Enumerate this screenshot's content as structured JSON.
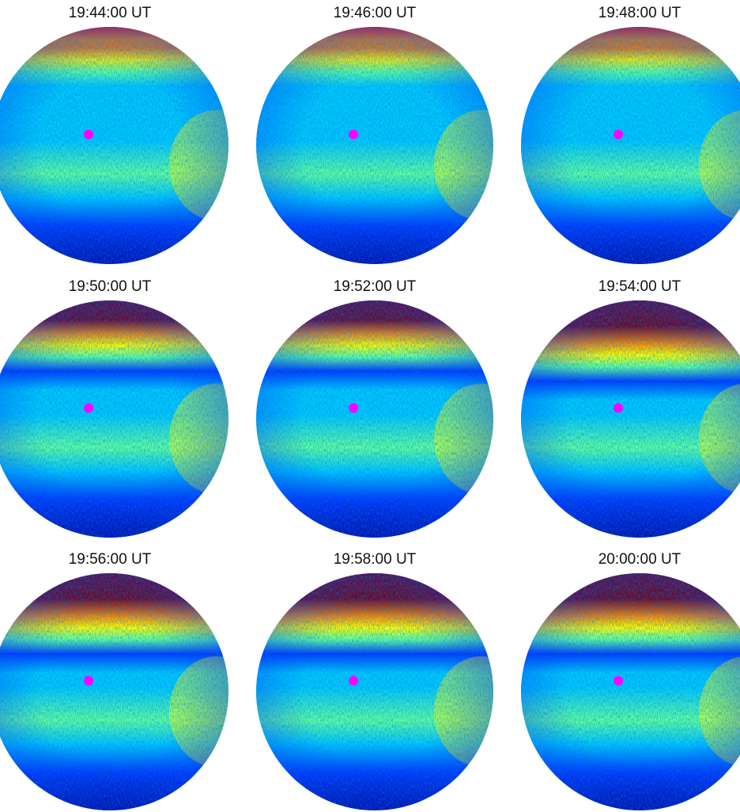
{
  "panels": [
    {
      "label": "19:44:00 UT",
      "aurora_top": "weak"
    },
    {
      "label": "19:46:00 UT",
      "aurora_top": "weak"
    },
    {
      "label": "19:48:00 UT",
      "aurora_top": "weak"
    },
    {
      "label": "19:50:00 UT",
      "aurora_top": "moderate"
    },
    {
      "label": "19:52:00 UT",
      "aurora_top": "moderate"
    },
    {
      "label": "19:54:00 UT",
      "aurora_top": "strong"
    },
    {
      "label": "19:56:00 UT",
      "aurora_top": "strong"
    },
    {
      "label": "19:58:00 UT",
      "aurora_top": "strong"
    },
    {
      "label": "20:00:00 UT",
      "aurora_top": "strong"
    }
  ],
  "colors": {
    "zenith_marker": "#ff00ff",
    "colormap": [
      "#00008f",
      "#0038ff",
      "#00c8ff",
      "#60ff9f",
      "#ffff00",
      "#ff8800",
      "#ff1a00",
      "#800000"
    ]
  }
}
